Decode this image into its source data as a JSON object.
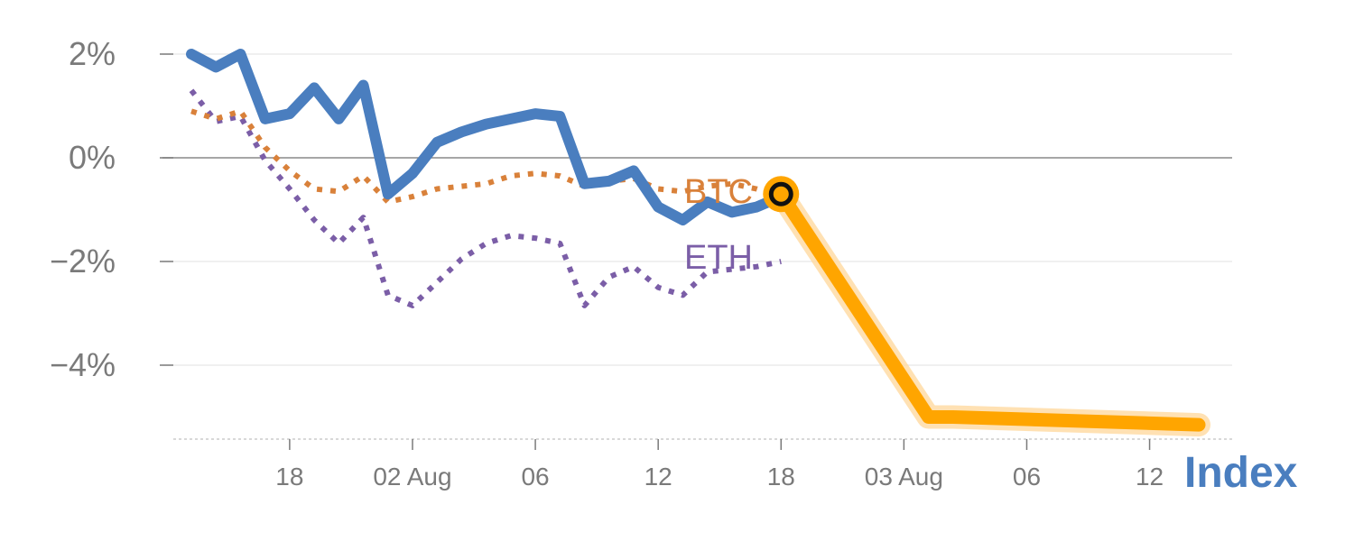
{
  "colors": {
    "index": "#4a7ebf",
    "btc": "#d9813a",
    "eth": "#7b5ea7",
    "highlight": "#ffa500",
    "grid": "#e6e6e6",
    "zero": "#888888",
    "tick": "#7a7a7a"
  },
  "chart_data": {
    "type": "line",
    "ylim": [
      -5.4,
      2.4
    ],
    "y_ticks": [
      2,
      0,
      -2,
      -4
    ],
    "y_tick_labels": [
      "2%",
      "0%",
      "−2%",
      "−4%"
    ],
    "x_range": [
      -0.5,
      41.5
    ],
    "x_ticks": [
      4,
      9,
      14,
      19,
      24,
      29,
      34,
      39
    ],
    "x_tick_labels": [
      "18",
      "02 Aug",
      "06",
      "12",
      "18",
      "03 Aug",
      "06",
      "12"
    ],
    "series": [
      {
        "name": "Index",
        "style": "solid",
        "x": [
          0,
          1,
          2,
          3,
          4,
          5,
          6,
          7,
          8,
          9,
          10,
          11,
          12,
          13,
          14,
          15,
          16,
          17,
          18,
          19,
          20,
          21,
          22,
          23,
          24
        ],
        "values": [
          2.0,
          1.75,
          2.0,
          0.75,
          0.85,
          1.35,
          0.75,
          1.4,
          -0.7,
          -0.3,
          0.3,
          0.5,
          0.65,
          0.75,
          0.85,
          0.8,
          -0.5,
          -0.45,
          -0.25,
          -0.95,
          -1.2,
          -0.85,
          -1.05,
          -0.95,
          -0.75
        ]
      },
      {
        "name": "BTC",
        "style": "dotted",
        "x": [
          0,
          1,
          2,
          3,
          4,
          5,
          6,
          7,
          8,
          9,
          10,
          11,
          12,
          13,
          14,
          15,
          16,
          17,
          18,
          19,
          20,
          21,
          22,
          23,
          24
        ],
        "values": [
          0.9,
          0.75,
          0.9,
          0.2,
          -0.25,
          -0.6,
          -0.65,
          -0.35,
          -0.85,
          -0.75,
          -0.6,
          -0.55,
          -0.5,
          -0.35,
          -0.3,
          -0.35,
          -0.55,
          -0.45,
          -0.4,
          -0.6,
          -0.65,
          -0.55,
          -0.5,
          -0.6,
          -0.75
        ]
      },
      {
        "name": "ETH",
        "style": "dotted",
        "x": [
          0,
          1,
          2,
          3,
          4,
          5,
          6,
          7,
          8,
          9,
          10,
          11,
          12,
          13,
          14,
          15,
          16,
          17,
          18,
          19,
          20,
          21,
          22,
          23,
          24
        ],
        "values": [
          1.3,
          0.7,
          0.8,
          -0.05,
          -0.6,
          -1.2,
          -1.65,
          -1.15,
          -2.65,
          -2.85,
          -2.4,
          -1.95,
          -1.65,
          -1.5,
          -1.55,
          -1.65,
          -2.85,
          -2.3,
          -2.1,
          -2.5,
          -2.65,
          -2.2,
          -2.15,
          -2.1,
          -2.0
        ]
      },
      {
        "name": "highlight",
        "style": "thick",
        "x": [
          24,
          30,
          31,
          41
        ],
        "values": [
          -0.7,
          -5.0,
          -5.0,
          -5.15
        ]
      }
    ],
    "labels": {
      "btc": "BTC",
      "eth": "ETH",
      "index": "Index"
    },
    "marker": {
      "x": 24,
      "y": -0.7
    },
    "grid": true,
    "zero_line": true
  }
}
